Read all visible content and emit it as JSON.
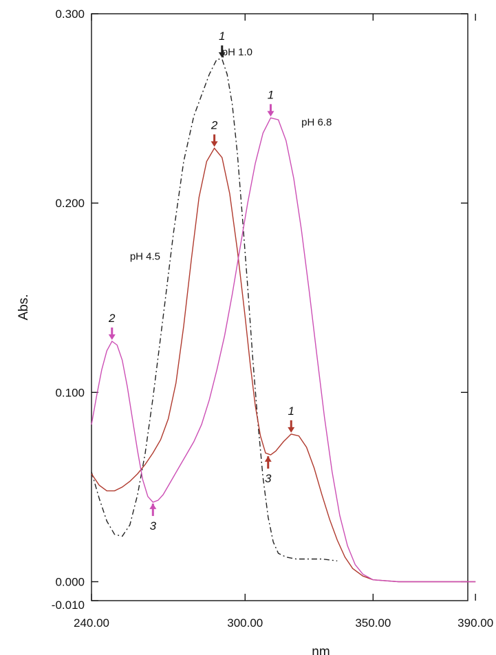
{
  "chart_data": {
    "type": "line",
    "xlabel": "nm",
    "ylabel": "Abs.",
    "xlim": [
      240,
      390
    ],
    "ylim": [
      -0.01,
      0.3
    ],
    "x_ticks": [
      {
        "value": 240,
        "label": "240.00"
      },
      {
        "value": 300,
        "label": "300.00"
      },
      {
        "value": 350,
        "label": "350.00"
      },
      {
        "value": 390,
        "label": "390.00"
      }
    ],
    "y_ticks": [
      {
        "value": -0.01,
        "label": "-0.010"
      },
      {
        "value": 0.0,
        "label": "0.000"
      },
      {
        "value": 0.1,
        "label": "0.100"
      },
      {
        "value": 0.2,
        "label": "0.200"
      },
      {
        "value": 0.3,
        "label": "0.300"
      }
    ],
    "series": [
      {
        "label": "pH 1.0",
        "color": "#222222",
        "style": "dash-dot",
        "label_at": [
          291,
          0.278
        ],
        "points": [
          [
            240,
            0.058
          ],
          [
            243,
            0.044
          ],
          [
            246,
            0.032
          ],
          [
            249,
            0.025
          ],
          [
            252,
            0.024
          ],
          [
            255,
            0.03
          ],
          [
            258,
            0.046
          ],
          [
            261,
            0.068
          ],
          [
            264,
            0.097
          ],
          [
            268,
            0.14
          ],
          [
            272,
            0.184
          ],
          [
            276,
            0.222
          ],
          [
            280,
            0.246
          ],
          [
            283,
            0.257
          ],
          [
            286,
            0.268
          ],
          [
            289,
            0.276
          ],
          [
            291,
            0.276
          ],
          [
            293,
            0.268
          ],
          [
            295,
            0.252
          ],
          [
            297,
            0.226
          ],
          [
            299,
            0.192
          ],
          [
            301,
            0.156
          ],
          [
            303,
            0.118
          ],
          [
            305,
            0.084
          ],
          [
            307,
            0.055
          ],
          [
            309,
            0.034
          ],
          [
            311,
            0.021
          ],
          [
            313,
            0.015
          ],
          [
            316,
            0.013
          ],
          [
            320,
            0.012
          ],
          [
            325,
            0.012
          ],
          [
            330,
            0.012
          ],
          [
            336,
            0.011
          ]
        ],
        "markers": [
          {
            "x": 291,
            "y": 0.276,
            "label": "1"
          }
        ]
      },
      {
        "label": "pH 4.5",
        "color": "#b03a2e",
        "style": "solid",
        "label_at": [
          255,
          0.17
        ],
        "points": [
          [
            240,
            0.057
          ],
          [
            243,
            0.051
          ],
          [
            246,
            0.048
          ],
          [
            249,
            0.048
          ],
          [
            252,
            0.05
          ],
          [
            255,
            0.053
          ],
          [
            258,
            0.057
          ],
          [
            261,
            0.062
          ],
          [
            264,
            0.068
          ],
          [
            267,
            0.075
          ],
          [
            270,
            0.086
          ],
          [
            273,
            0.105
          ],
          [
            276,
            0.135
          ],
          [
            279,
            0.17
          ],
          [
            282,
            0.203
          ],
          [
            285,
            0.222
          ],
          [
            288,
            0.229
          ],
          [
            291,
            0.224
          ],
          [
            294,
            0.205
          ],
          [
            297,
            0.175
          ],
          [
            300,
            0.14
          ],
          [
            302,
            0.115
          ],
          [
            304,
            0.093
          ],
          [
            306,
            0.077
          ],
          [
            308,
            0.068
          ],
          [
            310,
            0.067
          ],
          [
            312,
            0.069
          ],
          [
            315,
            0.074
          ],
          [
            318,
            0.078
          ],
          [
            321,
            0.077
          ],
          [
            324,
            0.071
          ],
          [
            327,
            0.06
          ],
          [
            330,
            0.046
          ],
          [
            333,
            0.033
          ],
          [
            336,
            0.022
          ],
          [
            339,
            0.013
          ],
          [
            342,
            0.007
          ],
          [
            346,
            0.003
          ],
          [
            350,
            0.001
          ],
          [
            360,
            0.0
          ],
          [
            375,
            0.0
          ],
          [
            390,
            0.0
          ]
        ],
        "markers": [
          {
            "x": 288,
            "y": 0.229,
            "label": "2"
          },
          {
            "x": 309,
            "y": 0.067,
            "label": "3"
          },
          {
            "x": 318,
            "y": 0.078,
            "label": "1"
          }
        ]
      },
      {
        "label": "pH 6.8",
        "color": "#cc4fb5",
        "style": "solid",
        "label_at": [
          322,
          0.241
        ],
        "points": [
          [
            240,
            0.083
          ],
          [
            242,
            0.098
          ],
          [
            244,
            0.112
          ],
          [
            246,
            0.122
          ],
          [
            248,
            0.127
          ],
          [
            250,
            0.125
          ],
          [
            252,
            0.117
          ],
          [
            254,
            0.103
          ],
          [
            256,
            0.086
          ],
          [
            258,
            0.069
          ],
          [
            260,
            0.054
          ],
          [
            262,
            0.045
          ],
          [
            264,
            0.042
          ],
          [
            266,
            0.043
          ],
          [
            268,
            0.046
          ],
          [
            271,
            0.053
          ],
          [
            274,
            0.06
          ],
          [
            277,
            0.067
          ],
          [
            280,
            0.074
          ],
          [
            283,
            0.083
          ],
          [
            286,
            0.096
          ],
          [
            289,
            0.112
          ],
          [
            292,
            0.13
          ],
          [
            295,
            0.152
          ],
          [
            298,
            0.176
          ],
          [
            301,
            0.2
          ],
          [
            304,
            0.221
          ],
          [
            307,
            0.237
          ],
          [
            310,
            0.245
          ],
          [
            313,
            0.244
          ],
          [
            316,
            0.233
          ],
          [
            319,
            0.213
          ],
          [
            322,
            0.186
          ],
          [
            325,
            0.154
          ],
          [
            328,
            0.12
          ],
          [
            331,
            0.087
          ],
          [
            334,
            0.058
          ],
          [
            337,
            0.035
          ],
          [
            340,
            0.019
          ],
          [
            343,
            0.009
          ],
          [
            346,
            0.004
          ],
          [
            350,
            0.001
          ],
          [
            360,
            0.0
          ],
          [
            375,
            0.0
          ],
          [
            390,
            0.0
          ]
        ],
        "markers": [
          {
            "x": 248,
            "y": 0.127,
            "label": "2"
          },
          {
            "x": 264,
            "y": 0.042,
            "label": "3"
          },
          {
            "x": 310,
            "y": 0.245,
            "label": "1"
          }
        ]
      }
    ]
  }
}
